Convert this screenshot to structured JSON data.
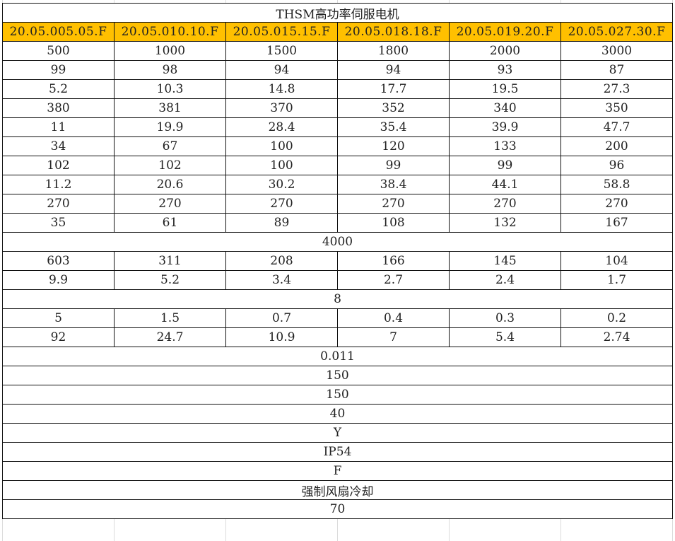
{
  "title": "THSM高功率伺服电机",
  "header_color": "#ffc000",
  "models": [
    "20.05.005.05.F",
    "20.05.010.10.F",
    "20.05.015.15.F",
    "20.05.018.18.F",
    "20.05.019.20.F",
    "20.05.027.30.F"
  ],
  "rows": [
    [
      "500",
      "1000",
      "1500",
      "1800",
      "2000",
      "3000"
    ],
    [
      "99",
      "98",
      "94",
      "94",
      "93",
      "87"
    ],
    [
      "5.2",
      "10.3",
      "14.8",
      "17.7",
      "19.5",
      "27.3"
    ],
    [
      "380",
      "381",
      "370",
      "352",
      "340",
      "350"
    ],
    [
      "11",
      "19.9",
      "28.4",
      "35.4",
      "39.9",
      "47.7"
    ],
    [
      "34",
      "67",
      "100",
      "120",
      "133",
      "200"
    ],
    [
      "102",
      "102",
      "100",
      "99",
      "99",
      "96"
    ],
    [
      "11.2",
      "20.6",
      "30.2",
      "38.4",
      "44.1",
      "58.8"
    ],
    [
      "270",
      "270",
      "270",
      "270",
      "270",
      "270"
    ],
    [
      "35",
      "61",
      "89",
      "108",
      "132",
      "167"
    ],
    [
      "4000"
    ],
    [
      "603",
      "311",
      "208",
      "166",
      "145",
      "104"
    ],
    [
      "9.9",
      "5.2",
      "3.4",
      "2.7",
      "2.4",
      "1.7"
    ],
    [
      "8"
    ],
    [
      "5",
      "1.5",
      "0.7",
      "0.4",
      "0.3",
      "0.2"
    ],
    [
      "92",
      "24.7",
      "10.9",
      "7",
      "5.4",
      "2.74"
    ],
    [
      "0.011"
    ],
    [
      "150"
    ],
    [
      "150"
    ],
    [
      "40"
    ],
    [
      "Y"
    ],
    [
      "IP54"
    ],
    [
      "F"
    ],
    [
      "强制风扇冷却"
    ],
    [
      "70"
    ]
  ]
}
